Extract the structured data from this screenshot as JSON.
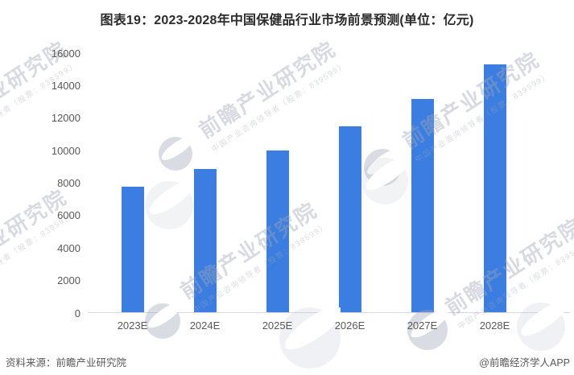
{
  "page_title": "图表19：2023-2028年中国保健品行业市场前景预测(单位：亿元)",
  "chart_data": {
    "type": "bar",
    "title": "图表19：2023-2028年中国保健品行业市场前景预测(单位：亿元)",
    "unit_label": "亿元",
    "categories": [
      "2023E",
      "2024E",
      "2025E",
      "2026E",
      "2027E",
      "2028E"
    ],
    "values": [
      7800,
      8850,
      10000,
      11500,
      13200,
      15300
    ],
    "ylim": [
      0,
      16000
    ],
    "yticks": [
      0,
      2000,
      4000,
      6000,
      8000,
      10000,
      12000,
      14000,
      16000
    ],
    "xlabel": "",
    "ylabel": "",
    "grid": false,
    "legend": "none",
    "bar_color": "#3b7de1",
    "axis_line_color": "#d9d9d9",
    "tick_label_color": "#595959"
  },
  "watermark": {
    "brand": "前瞻产业研究院",
    "tagline": "中国产业咨询领导者（股票：839599）",
    "logo": "qianzhan-logo",
    "color": "#d9dde4"
  },
  "footer": {
    "source": "资料来源：前瞻产业研究院",
    "credit": "@前瞻经济学人APP"
  }
}
